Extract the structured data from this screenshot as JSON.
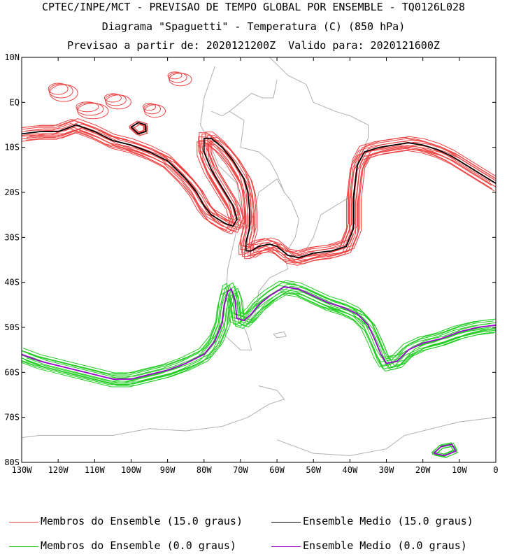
{
  "header": {
    "line1": "CPTEC/INPE/MCT - PREVISAO DE TEMPO GLOBAL POR ENSEMBLE - TQ0126L028",
    "line2": "Diagrama \"Spaguetti\" - Temperatura (C) (850 hPa)",
    "line3": "Previsao a partir de: 2020121200Z  Valido para: 2020121600Z"
  },
  "legend": {
    "members_15": "Membros do Ensemble (15.0 graus)",
    "mean_15": "Ensemble Medio (15.0 graus)",
    "members_0": "Membros do Ensemble (0.0 graus)",
    "mean_0": "Ensemble Medio (0.0 graus)"
  },
  "colors": {
    "members_15": "#ee4444",
    "mean_15": "#000000",
    "members_0": "#22cc22",
    "mean_0": "#9900cc",
    "coast": "#b0b0b0"
  },
  "chart_data": {
    "type": "line",
    "map_type": "spaghetti contour map",
    "xlim": [
      -130,
      0
    ],
    "ylim": [
      -80,
      10
    ],
    "x_ticks": [
      "130W",
      "120W",
      "110W",
      "100W",
      "90W",
      "80W",
      "70W",
      "60W",
      "50W",
      "40W",
      "30W",
      "20W",
      "10W",
      "0"
    ],
    "y_ticks": [
      "10N",
      "EQ",
      "10S",
      "20S",
      "30S",
      "40S",
      "50S",
      "60S",
      "70S",
      "80S"
    ],
    "series": [
      {
        "name": "Ensemble Medio (15.0 graus)",
        "contour": 15.0,
        "points_lon_lat": [
          [
            -130,
            -7
          ],
          [
            -125,
            -6.5
          ],
          [
            -120,
            -6.5
          ],
          [
            -115,
            -5
          ],
          [
            -110,
            -6.5
          ],
          [
            -105,
            -8.5
          ],
          [
            -100,
            -9.5
          ],
          [
            -95,
            -11
          ],
          [
            -90,
            -13
          ],
          [
            -85,
            -17
          ],
          [
            -82,
            -20
          ],
          [
            -80,
            -23
          ],
          [
            -78,
            -25
          ],
          [
            -76,
            -26
          ],
          [
            -74,
            -27
          ],
          [
            -72,
            -27.5
          ],
          [
            -71,
            -26
          ],
          [
            -72,
            -23
          ],
          [
            -75,
            -19
          ],
          [
            -78,
            -15
          ],
          [
            -80,
            -11
          ],
          [
            -80,
            -8
          ],
          [
            -78,
            -8
          ],
          [
            -75,
            -10
          ],
          [
            -72,
            -13
          ],
          [
            -69,
            -17
          ],
          [
            -68,
            -20
          ],
          [
            -67.5,
            -24
          ],
          [
            -67.5,
            -28
          ],
          [
            -68.5,
            -31
          ],
          [
            -68.5,
            -33
          ],
          [
            -67,
            -33
          ],
          [
            -65,
            -32
          ],
          [
            -62,
            -31.5
          ],
          [
            -60,
            -32
          ],
          [
            -57,
            -34
          ],
          [
            -54,
            -34.5
          ],
          [
            -50,
            -33.5
          ],
          [
            -45,
            -33
          ],
          [
            -41,
            -32
          ],
          [
            -39,
            -28
          ],
          [
            -39,
            -21
          ],
          [
            -38,
            -14
          ],
          [
            -36,
            -11
          ],
          [
            -32,
            -10
          ],
          [
            -28,
            -9.5
          ],
          [
            -24,
            -9
          ],
          [
            -20,
            -9.5
          ],
          [
            -16,
            -10.5
          ],
          [
            -12,
            -12
          ],
          [
            -8,
            -14
          ],
          [
            -4,
            -16
          ],
          [
            0,
            -18
          ]
        ]
      },
      {
        "name": "Ensemble Medio (0.0 graus)",
        "contour": 0.0,
        "points_lon_lat": [
          [
            -130,
            -56
          ],
          [
            -125,
            -57.5
          ],
          [
            -120,
            -58.5
          ],
          [
            -115,
            -59.5
          ],
          [
            -110,
            -60.5
          ],
          [
            -105,
            -61.5
          ],
          [
            -100,
            -61.5
          ],
          [
            -95,
            -60.5
          ],
          [
            -90,
            -59.5
          ],
          [
            -85,
            -58
          ],
          [
            -80,
            -56
          ],
          [
            -77,
            -53
          ],
          [
            -75,
            -49
          ],
          [
            -74.5,
            -45
          ],
          [
            -73.5,
            -42
          ],
          [
            -72.5,
            -41.5
          ],
          [
            -71.5,
            -44
          ],
          [
            -71,
            -48
          ],
          [
            -69,
            -48.5
          ],
          [
            -67,
            -47
          ],
          [
            -65,
            -45
          ],
          [
            -62,
            -43
          ],
          [
            -58,
            -41
          ],
          [
            -54,
            -41.5
          ],
          [
            -50,
            -43
          ],
          [
            -46,
            -44.5
          ],
          [
            -42,
            -45.5
          ],
          [
            -38,
            -47
          ],
          [
            -35,
            -49.5
          ],
          [
            -33,
            -53
          ],
          [
            -31.5,
            -56
          ],
          [
            -30,
            -58
          ],
          [
            -27,
            -57.5
          ],
          [
            -24,
            -55
          ],
          [
            -20,
            -53.5
          ],
          [
            -15,
            -52.5
          ],
          [
            -10,
            -51
          ],
          [
            -5,
            -50
          ],
          [
            0,
            -49.5
          ]
        ]
      },
      {
        "name": "Ensemble Medio (0.0 graus)",
        "contour": 0.0,
        "points_lon_lat": [
          [
            -17,
            -78
          ],
          [
            -15,
            -76.5
          ],
          [
            -12,
            -76
          ],
          [
            -11,
            -77.5
          ],
          [
            -14,
            -78.5
          ],
          [
            -17,
            -78
          ]
        ]
      },
      {
        "name": "Ensemble Medio (15.0 graus)",
        "contour": 15.0,
        "points_lon_lat": [
          [
            -100,
            -5.5
          ],
          [
            -98,
            -4.5
          ],
          [
            -96,
            -5
          ],
          [
            -96,
            -6.5
          ],
          [
            -98,
            -7
          ],
          [
            -100,
            -5.5
          ]
        ]
      }
    ]
  }
}
